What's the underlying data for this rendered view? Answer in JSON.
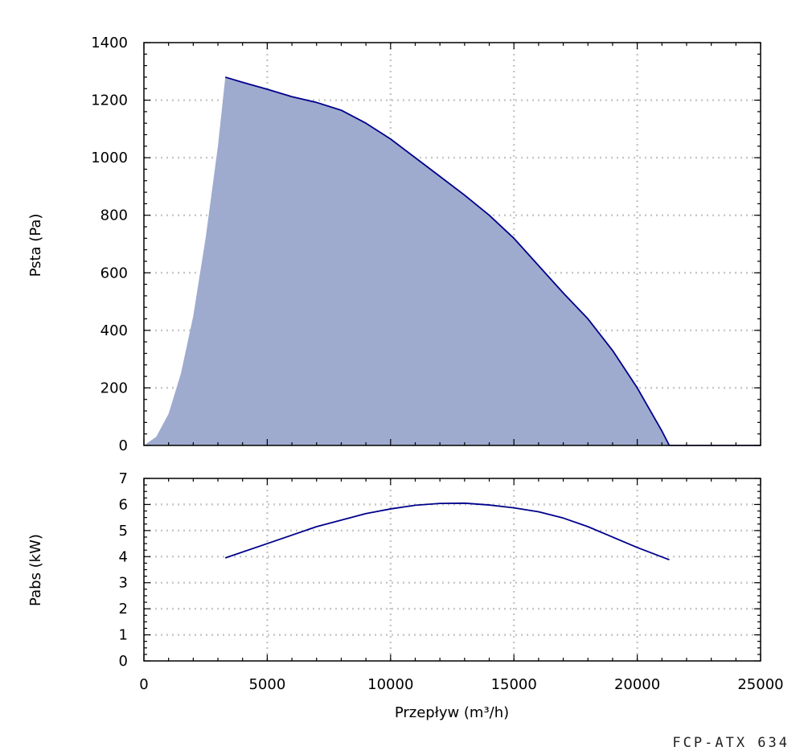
{
  "model_label": "FCP-ATX 634",
  "colors": {
    "fill": "#9eabcf",
    "line": "#00008b",
    "grid": "#c8c8c8",
    "axis": "#000000"
  },
  "chart_data": [
    {
      "type": "area",
      "title": "",
      "xlabel": "",
      "ylabel": "Psta (Pa)",
      "xlim": [
        0,
        25000
      ],
      "ylim": [
        0,
        1400
      ],
      "x_ticks": [
        "0",
        "5000",
        "10000",
        "15000",
        "20000",
        "25000"
      ],
      "y_ticks": [
        "0",
        "200",
        "400",
        "600",
        "800",
        "1000",
        "1200",
        "1400"
      ],
      "grid": true,
      "stall_region": {
        "x": [
          0,
          500,
          1000,
          1500,
          2000,
          2500,
          3000,
          3300
        ],
        "y": [
          0,
          30,
          110,
          250,
          450,
          720,
          1040,
          1280
        ]
      },
      "series": [
        {
          "x": [
            3300,
            4000,
            5000,
            6000,
            7000,
            8000,
            9000,
            10000,
            11000,
            12000,
            13000,
            14000,
            15000,
            16000,
            17000,
            18000,
            19000,
            20000,
            21000,
            21300
          ],
          "y": [
            1280,
            1262,
            1238,
            1212,
            1192,
            1165,
            1120,
            1065,
            1000,
            935,
            870,
            800,
            720,
            625,
            530,
            440,
            330,
            200,
            50,
            0
          ]
        }
      ]
    },
    {
      "type": "line",
      "title": "",
      "xlabel": "Przepływ (m³/h)",
      "ylabel": "Pabs (kW)",
      "xlim": [
        0,
        25000
      ],
      "ylim": [
        0,
        7
      ],
      "x_ticks": [
        "0",
        "5000",
        "10000",
        "15000",
        "20000",
        "25000"
      ],
      "y_ticks": [
        "0",
        "1",
        "2",
        "3",
        "4",
        "5",
        "6",
        "7"
      ],
      "grid": true,
      "series": [
        {
          "x": [
            3300,
            5000,
            7000,
            9000,
            10000,
            11000,
            12000,
            13000,
            14000,
            15000,
            16000,
            17000,
            18000,
            19000,
            20000,
            21300
          ],
          "y": [
            3.95,
            4.5,
            5.15,
            5.65,
            5.83,
            5.97,
            6.04,
            6.05,
            5.98,
            5.87,
            5.72,
            5.48,
            5.15,
            4.75,
            4.35,
            3.88
          ]
        }
      ]
    }
  ]
}
